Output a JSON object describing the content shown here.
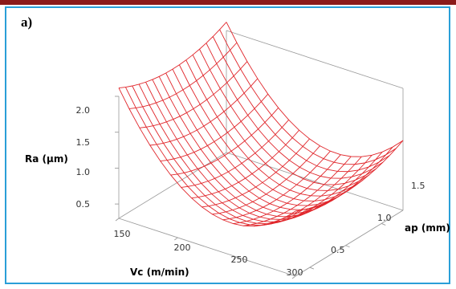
{
  "panel_label": "a)",
  "colors": {
    "frame_border": "#2a9fd8",
    "top_strip": "#8b1a1a",
    "surface": "#e0262b",
    "axes": "#9a9a9a"
  },
  "chart_data": {
    "type": "surface",
    "title": "",
    "zlabel": "Ra (µm)",
    "xlabel": "Vc (m/min)",
    "ylabel": "ap (mm)",
    "z_ticks": [
      "0.5",
      "1.0",
      "1.5",
      "2.0"
    ],
    "x_ticks": [
      "150",
      "200",
      "250",
      "300"
    ],
    "y_ticks": [
      "0.5",
      "1.0",
      "1.5"
    ],
    "xlim": [
      150,
      300
    ],
    "ylim": [
      0.3,
      1.8
    ],
    "zlim": [
      0.3,
      2.0
    ],
    "grid": true,
    "surface_corners": {
      "Vc_150_ap_0.3": 1.92,
      "Vc_150_ap_1.8": 1.95,
      "Vc_300_ap_0.3": 1.15,
      "Vc_300_ap_1.8": 1.2
    },
    "surface_min": {
      "Vc": 245,
      "ap": 1.05,
      "Ra": 0.55
    }
  }
}
